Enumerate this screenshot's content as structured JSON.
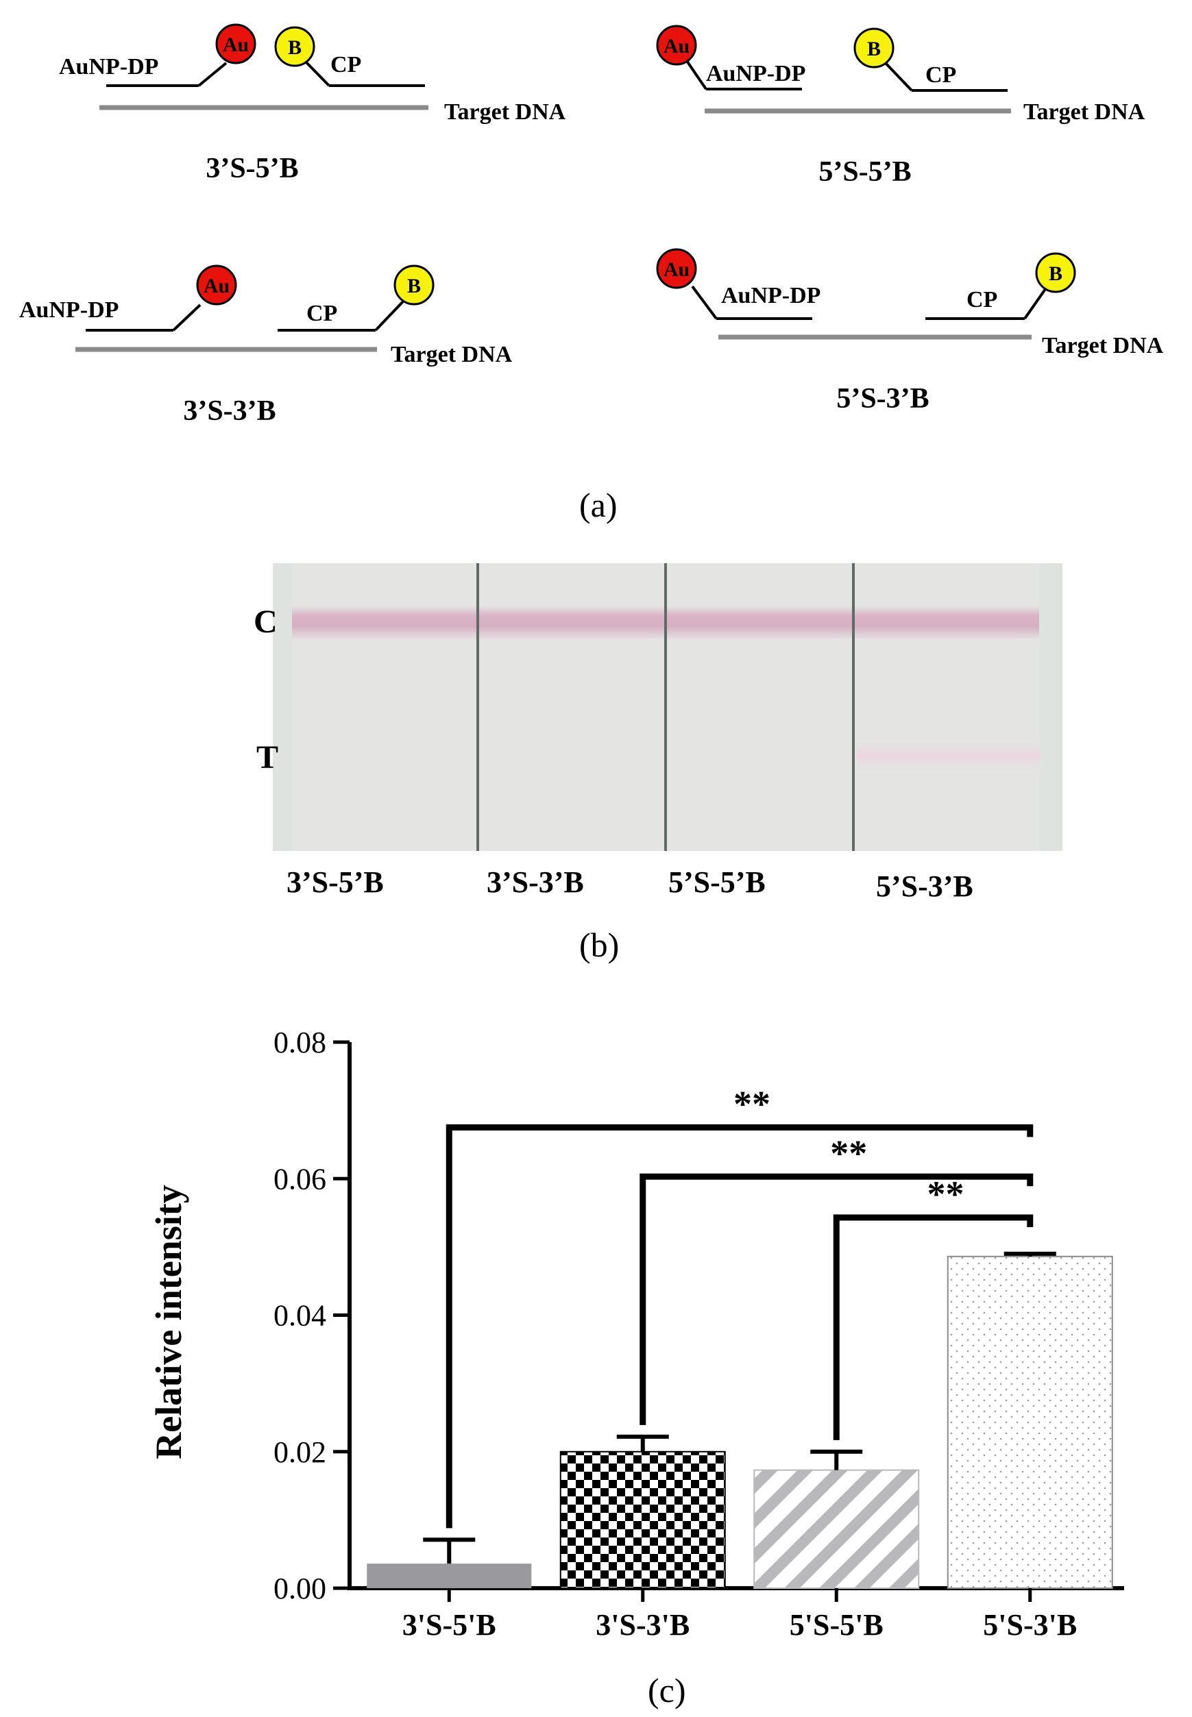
{
  "panel_a": {
    "caption": "(a)",
    "schemes": [
      {
        "name": "3’S-5’B",
        "dp_label": "AuNP-DP",
        "cp_label": "CP",
        "target_label": "Target DNA",
        "au_label": "Au",
        "b_label": "B"
      },
      {
        "name": "5’S-5’B",
        "dp_label": "AuNP-DP",
        "cp_label": "CP",
        "target_label": "Target DNA",
        "au_label": "Au",
        "b_label": "B"
      },
      {
        "name": "3’S-3’B",
        "dp_label": "AuNP-DP",
        "cp_label": "CP",
        "target_label": "Target DNA",
        "au_label": "Au",
        "b_label": "B"
      },
      {
        "name": "5’S-3’B",
        "dp_label": "AuNP-DP",
        "cp_label": "CP",
        "target_label": "Target DNA",
        "au_label": "Au",
        "b_label": "B"
      }
    ]
  },
  "panel_b": {
    "caption": "(b)",
    "line_c_label": "C",
    "line_t_label": "T",
    "strips": [
      {
        "label": "3’S-5’B",
        "t_line_visible": false
      },
      {
        "label": "3’S-3’B",
        "t_line_visible": false
      },
      {
        "label": "5’S-5’B",
        "t_line_visible": false
      },
      {
        "label": "5’S-3’B",
        "t_line_visible": true
      }
    ],
    "colors": {
      "background": "#e3e3e1",
      "control_line": "#d8b6c8",
      "test_line": "#ead7df"
    }
  },
  "panel_c": {
    "caption": "(c)"
  },
  "chart_data": {
    "type": "bar",
    "ylabel": "Relative intensity",
    "xlabel": "",
    "categories": [
      "3'S-5'B",
      "3'S-3'B",
      "5'S-5'B",
      "5'S-3'B"
    ],
    "values": [
      0.0036,
      0.02,
      0.0173,
      0.0486
    ],
    "errors": [
      0.0035,
      0.0022,
      0.0027,
      0.0004
    ],
    "patterns": [
      "solid-gray",
      "checkerboard",
      "diagonal-stripes",
      "dots"
    ],
    "ylim": [
      0,
      0.08
    ],
    "yticks": [
      "0.00",
      "0.02",
      "0.04",
      "0.06",
      "0.08"
    ],
    "significance": [
      {
        "from": "3'S-5'B",
        "to": "5'S-3'B",
        "label": "**"
      },
      {
        "from": "3'S-3'B",
        "to": "5'S-3'B",
        "label": "**"
      },
      {
        "from": "5'S-5'B",
        "to": "5'S-3'B",
        "label": "**"
      }
    ],
    "grid": false,
    "colors": {
      "bar_gray": "#9a9a9e",
      "stripe": "#b9b9bc",
      "checker": "#000000"
    }
  }
}
